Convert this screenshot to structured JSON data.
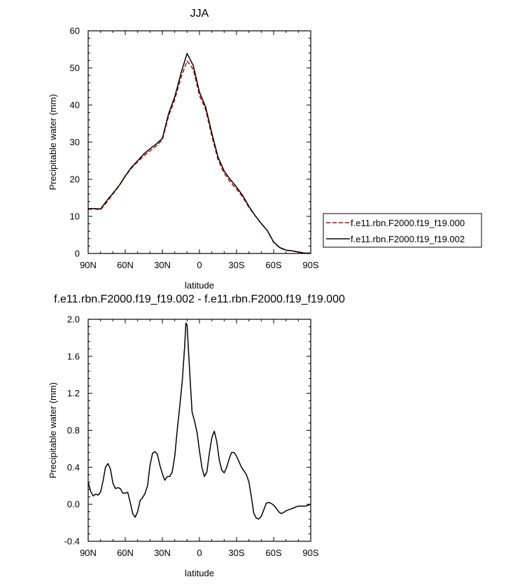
{
  "chart_data": [
    {
      "type": "line",
      "title": "JJA",
      "xlabel": "latitude",
      "ylabel": "Precipitable water (mm)",
      "xlim": [
        90,
        -90
      ],
      "ylim": [
        0,
        60
      ],
      "x_ticks": [
        90,
        60,
        30,
        0,
        -30,
        -60,
        -90
      ],
      "x_tick_labels": [
        "90N",
        "60N",
        "30N",
        "0",
        "30S",
        "60S",
        "90S"
      ],
      "y_ticks": [
        0,
        10,
        20,
        30,
        40,
        50,
        60
      ],
      "y_tick_labels": [
        "0",
        "10",
        "20",
        "30",
        "40",
        "50",
        "60"
      ],
      "legend_position": "right",
      "series": [
        {
          "name": "f.e11.rbn.F2000.f19_f19.000",
          "color": "#cc0000",
          "dash": "dashed",
          "x": [
            90,
            85,
            80,
            75,
            70,
            65,
            60,
            55,
            50,
            45,
            40,
            35,
            30,
            25,
            20,
            15,
            10,
            5,
            0,
            -5,
            -10,
            -15,
            -20,
            -25,
            -30,
            -35,
            -40,
            -45,
            -50,
            -55,
            -60,
            -65,
            -70,
            -75,
            -80,
            -85,
            -90
          ],
          "y": [
            11.9,
            12.0,
            11.8,
            13.8,
            16.0,
            18.2,
            20.8,
            23.0,
            24.7,
            26.3,
            27.6,
            29.0,
            30.6,
            37.0,
            41.5,
            47.3,
            51.9,
            49.6,
            42.6,
            38.8,
            31.6,
            25.3,
            21.6,
            19.2,
            17.3,
            15.2,
            12.4,
            10.2,
            8.1,
            6.1,
            3.0,
            1.5,
            0.9,
            0.7,
            0.4,
            0.1,
            0.1
          ]
        },
        {
          "name": "f.e11.rbn.F2000.f19_f19.002",
          "color": "#000000",
          "dash": "solid",
          "x": [
            90,
            85,
            80,
            75,
            70,
            65,
            60,
            55,
            50,
            45,
            40,
            35,
            30,
            25,
            20,
            15,
            10,
            5,
            0,
            -5,
            -10,
            -15,
            -20,
            -25,
            -30,
            -35,
            -40,
            -45,
            -50,
            -55,
            -60,
            -65,
            -70,
            -75,
            -80,
            -85,
            -90
          ],
          "y": [
            12.1,
            12.1,
            12.0,
            14.2,
            16.2,
            18.3,
            20.9,
            23.2,
            25.0,
            26.8,
            28.2,
            29.5,
            31.0,
            37.6,
            42.2,
            48.5,
            53.9,
            50.6,
            43.5,
            39.5,
            32.4,
            26.0,
            22.2,
            19.9,
            17.9,
            15.6,
            12.7,
            10.2,
            8.1,
            6.1,
            3.1,
            1.6,
            0.9,
            0.7,
            0.4,
            0.1,
            0.1
          ]
        }
      ]
    },
    {
      "type": "line",
      "title": "f.e11.rbn.F2000.f19_f19.002 - f.e11.rbn.F2000.f19_f19.000",
      "xlabel": "latitude",
      "ylabel": "Precipitable water (mm)",
      "xlim": [
        90,
        -90
      ],
      "ylim": [
        -0.4,
        2.0
      ],
      "x_ticks": [
        90,
        60,
        30,
        0,
        -30,
        -60,
        -90
      ],
      "x_tick_labels": [
        "90N",
        "60N",
        "30N",
        "0",
        "30S",
        "60S",
        "90S"
      ],
      "y_ticks": [
        -0.4,
        0.0,
        0.4,
        0.8,
        1.2,
        1.6,
        2.0
      ],
      "y_tick_labels": [
        "-0.4",
        "0.0",
        "0.4",
        "0.8",
        "1.2",
        "1.6",
        "2.0"
      ],
      "series": [
        {
          "color": "#000000",
          "dash": "solid",
          "x": [
            90,
            88,
            86,
            84,
            82,
            80,
            78,
            76,
            74,
            72,
            70,
            68,
            66,
            64,
            62,
            60,
            58,
            56,
            54,
            52,
            50,
            48,
            46,
            44,
            42,
            40,
            38,
            36,
            34,
            32,
            30,
            28,
            26,
            24,
            22,
            20,
            18,
            16,
            14,
            12,
            11,
            10,
            8,
            6,
            4,
            2,
            0,
            -2,
            -4,
            -6,
            -8,
            -10,
            -12,
            -14,
            -16,
            -18,
            -20,
            -22,
            -24,
            -26,
            -28,
            -30,
            -32,
            -34,
            -36,
            -38,
            -40,
            -42,
            -44,
            -46,
            -48,
            -50,
            -52,
            -54,
            -56,
            -58,
            -60,
            -62,
            -64,
            -66,
            -68,
            -70,
            -72,
            -74,
            -76,
            -78,
            -80,
            -82,
            -84,
            -86,
            -88,
            -90
          ],
          "y": [
            0.24,
            0.14,
            0.09,
            0.11,
            0.1,
            0.13,
            0.25,
            0.4,
            0.44,
            0.38,
            0.23,
            0.17,
            0.18,
            0.17,
            0.12,
            0.12,
            0.13,
            0.02,
            -0.1,
            -0.14,
            -0.08,
            0.04,
            0.07,
            0.12,
            0.2,
            0.42,
            0.55,
            0.57,
            0.54,
            0.42,
            0.33,
            0.26,
            0.3,
            0.3,
            0.35,
            0.52,
            0.8,
            1.05,
            1.32,
            1.7,
            1.96,
            1.94,
            1.45,
            1.0,
            0.9,
            0.78,
            0.58,
            0.4,
            0.3,
            0.35,
            0.55,
            0.72,
            0.79,
            0.68,
            0.48,
            0.37,
            0.34,
            0.4,
            0.49,
            0.56,
            0.56,
            0.52,
            0.46,
            0.4,
            0.36,
            0.32,
            0.24,
            0.08,
            -0.1,
            -0.15,
            -0.16,
            -0.13,
            -0.06,
            0.01,
            0.02,
            0.01,
            -0.01,
            -0.04,
            -0.08,
            -0.1,
            -0.09,
            -0.07,
            -0.06,
            -0.05,
            -0.04,
            -0.03,
            -0.02,
            -0.02,
            -0.02,
            -0.02,
            -0.01,
            0.0
          ]
        }
      ]
    }
  ]
}
